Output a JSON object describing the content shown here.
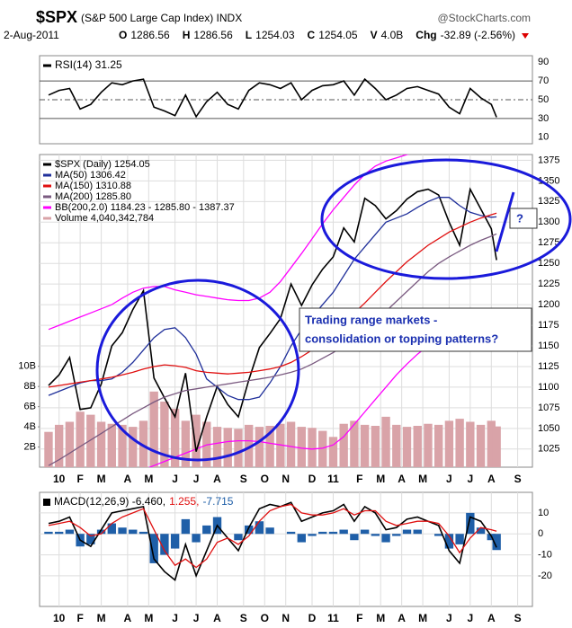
{
  "header": {
    "symbol": "$SPX",
    "description": "(S&P 500 Large Cap Index) INDX",
    "source": "@StockCharts.com",
    "date": "2-Aug-2011",
    "quote": [
      {
        "label": "O",
        "value": 1286.56
      },
      {
        "label": "H",
        "value": 1286.56
      },
      {
        "label": "L",
        "value": 1254.03
      },
      {
        "label": "C",
        "value": 1254.05
      },
      {
        "label": "V",
        "value": "4.0B"
      },
      {
        "label": "Chg",
        "value": "-32.89 (-2.56%)"
      }
    ]
  },
  "chart_data": [
    {
      "type": "line",
      "legend": "top-left",
      "grid": false,
      "x": [
        0,
        2,
        4,
        6,
        8,
        10,
        12,
        14,
        16,
        18,
        20,
        22,
        24,
        26,
        28,
        30,
        32,
        34,
        36,
        38,
        40,
        42,
        44,
        46,
        48,
        50,
        52,
        54,
        56,
        58,
        60,
        62,
        64,
        66,
        68,
        70,
        72,
        74,
        76,
        78,
        80,
        82,
        84,
        85
      ],
      "xlim": [
        -1.7,
        91.8
      ],
      "ylim": [
        3,
        97
      ],
      "yticks": [
        10,
        30,
        50,
        70,
        90
      ],
      "hlines": [
        30,
        50,
        70
      ],
      "series": [
        {
          "name": "RSI(14) 31.25",
          "color": "#000000",
          "style": "line",
          "values": [
            55,
            60,
            62,
            40,
            45,
            58,
            68,
            66,
            70,
            72,
            42,
            38,
            33,
            55,
            32,
            48,
            58,
            45,
            40,
            60,
            68,
            66,
            62,
            68,
            50,
            60,
            65,
            66,
            70,
            55,
            72,
            62,
            50,
            55,
            62,
            64,
            60,
            56,
            42,
            35,
            62,
            52,
            45,
            31.25
          ]
        }
      ]
    },
    {
      "type": "line",
      "legend": "top-left",
      "grid": true,
      "x": [
        0,
        2,
        4,
        6,
        8,
        10,
        12,
        14,
        16,
        18,
        20,
        22,
        24,
        26,
        28,
        30,
        32,
        34,
        36,
        38,
        40,
        42,
        44,
        46,
        48,
        50,
        52,
        54,
        56,
        58,
        60,
        62,
        64,
        66,
        68,
        70,
        72,
        74,
        76,
        78,
        80,
        82,
        84,
        85
      ],
      "xlim": [
        -1.7,
        91.8
      ],
      "ylim": [
        1003,
        1382
      ],
      "yticks": [
        1025,
        1050,
        1075,
        1100,
        1125,
        1150,
        1175,
        1200,
        1225,
        1250,
        1275,
        1300,
        1325,
        1350,
        1375
      ],
      "y2lim": [
        0,
        31000000000
      ],
      "y2ticks": [
        {
          "value": 2000000000,
          "label": "2B"
        },
        {
          "value": 4000000000,
          "label": "4B"
        },
        {
          "value": 6000000000,
          "label": "6B"
        },
        {
          "value": 8000000000,
          "label": "8B"
        },
        {
          "value": 10000000000,
          "label": "10B"
        }
      ],
      "xticks": [
        {
          "value": 2,
          "label": "10"
        },
        {
          "value": 6,
          "label": "F"
        },
        {
          "value": 10,
          "label": "M"
        },
        {
          "value": 15,
          "label": "A"
        },
        {
          "value": 19,
          "label": "M"
        },
        {
          "value": 24,
          "label": "J"
        },
        {
          "value": 28,
          "label": "J"
        },
        {
          "value": 32,
          "label": "A"
        },
        {
          "value": 37,
          "label": "S"
        },
        {
          "value": 41,
          "label": "O"
        },
        {
          "value": 45,
          "label": "N"
        },
        {
          "value": 50,
          "label": "D"
        },
        {
          "value": 54,
          "label": "11"
        },
        {
          "value": 59,
          "label": "F"
        },
        {
          "value": 63,
          "label": "M"
        },
        {
          "value": 67,
          "label": "A"
        },
        {
          "value": 71,
          "label": "M"
        },
        {
          "value": 76,
          "label": "J"
        },
        {
          "value": 80,
          "label": "J"
        },
        {
          "value": 84,
          "label": "A"
        },
        {
          "value": 89,
          "label": "S"
        }
      ],
      "annotations": [
        "Trading range markets -",
        "consolidation or topping patterns?",
        "?"
      ],
      "series": [
        {
          "name": "$SPX (Daily) 1254.05",
          "color": "#000000",
          "style": "line",
          "values": [
            1102,
            1115,
            1136,
            1073,
            1075,
            1104,
            1150,
            1166,
            1194,
            1217,
            1111,
            1087,
            1064,
            1117,
            1022,
            1064,
            1101,
            1079,
            1064,
            1109,
            1148,
            1165,
            1183,
            1225,
            1199,
            1224,
            1243,
            1258,
            1293,
            1276,
            1329,
            1320,
            1304,
            1314,
            1328,
            1337,
            1340,
            1333,
            1300,
            1272,
            1340,
            1316,
            1292,
            1254.05
          ]
        },
        {
          "name": "MA(50) 1306.42",
          "color": "#1f2f9a",
          "style": "line",
          "values": [
            1090,
            1095,
            1100,
            1105,
            1108,
            1108,
            1110,
            1118,
            1130,
            1145,
            1160,
            1170,
            1172,
            1160,
            1140,
            1110,
            1100,
            1090,
            1085,
            1085,
            1088,
            1105,
            1125,
            1150,
            1170,
            1185,
            1200,
            1215,
            1235,
            1255,
            1270,
            1285,
            1300,
            1305,
            1310,
            1318,
            1325,
            1330,
            1330,
            1320,
            1312,
            1308,
            1306,
            1306.42
          ]
        },
        {
          "name": "MA(150) 1310.88",
          "color": "#e01010",
          "style": "line",
          "values": [
            1100,
            1102,
            1104,
            1106,
            1108,
            1110,
            1112,
            1115,
            1118,
            1122,
            1125,
            1127,
            1126,
            1124,
            1120,
            1118,
            1117,
            1116,
            1117,
            1118,
            1120,
            1122,
            1125,
            1130,
            1137,
            1145,
            1155,
            1165,
            1178,
            1190,
            1202,
            1215,
            1228,
            1240,
            1252,
            1262,
            1272,
            1280,
            1288,
            1294,
            1300,
            1305,
            1309,
            1310.88
          ]
        },
        {
          "name": "MA(200) 1285.80",
          "color": "#7a5a80",
          "style": "line",
          "values": [
            1005,
            1012,
            1020,
            1028,
            1036,
            1044,
            1052,
            1060,
            1068,
            1075,
            1082,
            1088,
            1092,
            1096,
            1098,
            1100,
            1102,
            1104,
            1106,
            1108,
            1110,
            1112,
            1115,
            1118,
            1122,
            1128,
            1135,
            1142,
            1150,
            1160,
            1170,
            1180,
            1192,
            1204,
            1216,
            1228,
            1240,
            1250,
            1258,
            1265,
            1272,
            1278,
            1283,
            1285.8
          ]
        },
        {
          "name": "BB(200,2.0) 1184.23 - 1285.80 - 1387.37",
          "color": "#ff00ff",
          "style": "band",
          "values": [
            1170,
            1175,
            1180,
            1185,
            1190,
            1195,
            1200,
            1208,
            1215,
            1220,
            1222,
            1222,
            1218,
            1215,
            1212,
            1210,
            1208,
            1206,
            1205,
            1205,
            1208,
            1215,
            1228,
            1245,
            1262,
            1280,
            1298,
            1315,
            1330,
            1345,
            1358,
            1368,
            1374,
            1378,
            1382,
            1385,
            1387,
            1388,
            1388,
            1388,
            1388,
            1388,
            1387.5,
            1387.37
          ],
          "lower": [
            1000,
            998,
            996,
            994,
            992,
            990,
            990,
            992,
            995,
            1000,
            1005,
            1010,
            1015,
            1020,
            1025,
            1030,
            1032,
            1034,
            1035,
            1035,
            1034,
            1032,
            1030,
            1028,
            1026,
            1025,
            1026,
            1030,
            1040,
            1055,
            1070,
            1085,
            1100,
            1115,
            1128,
            1140,
            1150,
            1160,
            1168,
            1174,
            1178,
            1181,
            1183,
            1184.23
          ]
        },
        {
          "name": "Volume 4,040,342,784",
          "color": "#d9a3a8",
          "style": "bar",
          "axis": "y2",
          "values": [
            3500000000,
            4200000000,
            4500000000,
            5500000000,
            5200000000,
            4500000000,
            4300000000,
            4200000000,
            4000000000,
            4600000000,
            7500000000,
            6500000000,
            5800000000,
            4600000000,
            5200000000,
            4500000000,
            4000000000,
            3900000000,
            3800000000,
            4200000000,
            4000000000,
            4100000000,
            4300000000,
            4500000000,
            4000000000,
            3900000000,
            3600000000,
            3000000000,
            4300000000,
            4600000000,
            4200000000,
            4100000000,
            5000000000,
            4200000000,
            4000000000,
            4100000000,
            4300000000,
            4200000000,
            4600000000,
            4800000000,
            4500000000,
            4200000000,
            4600000000,
            4040342784
          ]
        }
      ]
    },
    {
      "type": "line",
      "legend": "top-left",
      "legend_flow": "row",
      "grid": true,
      "x": [
        0,
        2,
        4,
        6,
        8,
        10,
        12,
        14,
        16,
        18,
        20,
        22,
        24,
        26,
        28,
        30,
        32,
        34,
        36,
        38,
        40,
        42,
        44,
        46,
        48,
        50,
        52,
        54,
        56,
        58,
        60,
        62,
        64,
        66,
        68,
        70,
        72,
        74,
        76,
        78,
        80,
        82,
        84,
        85
      ],
      "xlim": [
        -1.7,
        91.8
      ],
      "ylim": [
        -34.6,
        19.8
      ],
      "yticks": [
        -20,
        -10,
        0,
        10
      ],
      "xticks": [
        {
          "value": 2,
          "label": "10"
        },
        {
          "value": 6,
          "label": "F"
        },
        {
          "value": 10,
          "label": "M"
        },
        {
          "value": 15,
          "label": "A"
        },
        {
          "value": 19,
          "label": "M"
        },
        {
          "value": 24,
          "label": "J"
        },
        {
          "value": 28,
          "label": "J"
        },
        {
          "value": 32,
          "label": "A"
        },
        {
          "value": 37,
          "label": "S"
        },
        {
          "value": 41,
          "label": "O"
        },
        {
          "value": 45,
          "label": "N"
        },
        {
          "value": 50,
          "label": "D"
        },
        {
          "value": 54,
          "label": "11"
        },
        {
          "value": 59,
          "label": "F"
        },
        {
          "value": 63,
          "label": "M"
        },
        {
          "value": 67,
          "label": "A"
        },
        {
          "value": 71,
          "label": "M"
        },
        {
          "value": 76,
          "label": "J"
        },
        {
          "value": 80,
          "label": "J"
        },
        {
          "value": 84,
          "label": "A"
        },
        {
          "value": 89,
          "label": "S"
        }
      ],
      "series": [
        {
          "name": "MACD(12,26,9) -6.460,",
          "color": "#000000",
          "style": "line",
          "values": [
            5,
            6,
            8,
            -3,
            -6,
            2,
            10,
            11,
            12,
            13,
            -12,
            -18,
            -22,
            -5,
            -20,
            -8,
            4,
            -2,
            -8,
            3,
            12,
            14,
            13,
            15,
            6,
            8,
            10,
            11,
            14,
            6,
            13,
            10,
            2,
            3,
            7,
            8,
            6,
            4,
            -8,
            -14,
            8,
            6,
            -1,
            -6.46
          ]
        },
        {
          "name": "1.255,",
          "color": "#e01010",
          "style": "line",
          "values": [
            4,
            5,
            6,
            3,
            -1,
            0,
            5,
            8,
            10,
            12,
            2,
            -8,
            -15,
            -12,
            -16,
            -12,
            -4,
            -2,
            -5,
            -1,
            6,
            11,
            13,
            14,
            10,
            9,
            9,
            10,
            12,
            9,
            11,
            11,
            6,
            4,
            5,
            6,
            6,
            5,
            -1,
            -9,
            -2,
            3,
            2,
            1.255
          ]
        },
        {
          "name": "-7.715",
          "color": "#1f5fa8",
          "style": "bar",
          "values": [
            1,
            1,
            2,
            -6,
            -5,
            2,
            5,
            3,
            2,
            1,
            -14,
            -10,
            -7,
            7,
            -4,
            4,
            8,
            0,
            -3,
            4,
            6,
            3,
            0,
            1,
            -4,
            -1,
            1,
            1,
            2,
            -3,
            2,
            -1,
            -4,
            -1,
            2,
            2,
            0,
            -1,
            -7,
            -5,
            10,
            3,
            -3,
            -7.715
          ]
        }
      ]
    }
  ]
}
